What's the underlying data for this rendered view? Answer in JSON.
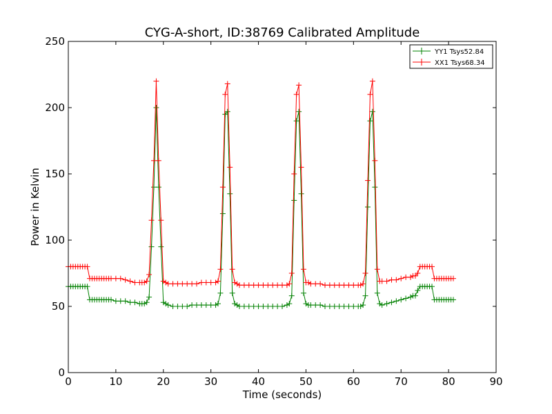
{
  "chart_data": {
    "type": "line",
    "title": "CYG-A-short, ID:38769 Calibrated Amplitude",
    "xlabel": "Time (seconds)",
    "ylabel": "Power in Kelvin",
    "xlim": [
      0,
      90
    ],
    "ylim": [
      0,
      250
    ],
    "xticks": [
      0,
      10,
      20,
      30,
      40,
      50,
      60,
      70,
      80,
      90
    ],
    "yticks": [
      0,
      50,
      100,
      150,
      200,
      250
    ],
    "grid": false,
    "legend_position": "top-right",
    "series": [
      {
        "name": "YY1 Tsys52.84",
        "color": "#008000",
        "x": [
          0,
          0.5,
          1,
          1.5,
          2,
          2.5,
          3,
          3.5,
          4,
          4.5,
          5,
          5.5,
          6,
          6.5,
          7,
          7.5,
          8,
          8.5,
          9,
          10,
          11,
          12,
          13,
          14,
          15,
          15.5,
          16,
          16.5,
          17,
          17.5,
          18,
          18.5,
          19,
          19.5,
          20,
          20.5,
          21,
          22,
          23,
          24,
          25,
          26,
          27,
          28,
          29,
          30,
          31,
          31.5,
          32,
          32.5,
          33,
          33.5,
          34,
          34.5,
          35,
          35.5,
          36,
          37,
          38,
          39,
          40,
          41,
          42,
          43,
          44,
          45,
          46,
          46.5,
          47,
          47.5,
          48,
          48.5,
          49,
          49.5,
          50,
          50.5,
          51,
          52,
          53,
          54,
          55,
          56,
          57,
          58,
          59,
          60,
          61,
          61.5,
          62,
          62.5,
          63,
          63.5,
          64,
          64.5,
          65,
          65.5,
          66,
          67,
          68,
          69,
          70,
          71,
          72,
          72.5,
          73,
          73.5,
          74,
          74.5,
          75,
          75.5,
          76,
          76.5,
          77,
          77.5,
          78,
          78.5,
          79,
          79.5,
          80,
          80.5,
          81
        ],
        "values": [
          65,
          65,
          65,
          65,
          65,
          65,
          65,
          65,
          65,
          55,
          55,
          55,
          55,
          55,
          55,
          55,
          55,
          55,
          55,
          54,
          54,
          54,
          53,
          53,
          52,
          52,
          52,
          53,
          57,
          95,
          140,
          200,
          140,
          95,
          53,
          52,
          51,
          50,
          50,
          50,
          50,
          51,
          51,
          51,
          51,
          51,
          51,
          52,
          60,
          120,
          195,
          197,
          135,
          60,
          52,
          51,
          50,
          50,
          50,
          50,
          50,
          50,
          50,
          50,
          50,
          50,
          51,
          52,
          58,
          130,
          190,
          197,
          135,
          60,
          52,
          51,
          51,
          51,
          51,
          50,
          50,
          50,
          50,
          50,
          50,
          50,
          50,
          50,
          51,
          58,
          125,
          190,
          197,
          140,
          60,
          52,
          51,
          52,
          53,
          54,
          55,
          56,
          57,
          58,
          58,
          62,
          65,
          65,
          65,
          65,
          65,
          65,
          55,
          55,
          55,
          55,
          55,
          55,
          55,
          55,
          55
        ]
      },
      {
        "name": "XX1 Tsys68.34",
        "color": "#ff0000",
        "x": [
          0,
          0.5,
          1,
          1.5,
          2,
          2.5,
          3,
          3.5,
          4,
          4.5,
          5,
          5.5,
          6,
          6.5,
          7,
          7.5,
          8,
          8.5,
          9,
          10,
          11,
          12,
          13,
          14,
          15,
          15.5,
          16,
          16.5,
          17,
          17.5,
          18,
          18.5,
          19,
          19.5,
          20,
          20.5,
          21,
          22,
          23,
          24,
          25,
          26,
          27,
          28,
          29,
          30,
          31,
          31.5,
          32,
          32.5,
          33,
          33.5,
          34,
          34.5,
          35,
          35.5,
          36,
          37,
          38,
          39,
          40,
          41,
          42,
          43,
          44,
          45,
          46,
          46.5,
          47,
          47.5,
          48,
          48.5,
          49,
          49.5,
          50,
          50.5,
          51,
          52,
          53,
          54,
          55,
          56,
          57,
          58,
          59,
          60,
          61,
          61.5,
          62,
          62.5,
          63,
          63.5,
          64,
          64.5,
          65,
          65.5,
          66,
          67,
          68,
          69,
          70,
          71,
          72,
          72.5,
          73,
          73.5,
          74,
          74.5,
          75,
          75.5,
          76,
          76.5,
          77,
          77.5,
          78,
          78.5,
          79,
          79.5,
          80,
          80.5,
          81
        ],
        "values": [
          80,
          80,
          80,
          80,
          80,
          80,
          80,
          80,
          80,
          71,
          71,
          71,
          71,
          71,
          71,
          71,
          71,
          71,
          71,
          71,
          71,
          70,
          69,
          68,
          68,
          68,
          68,
          69,
          74,
          115,
          160,
          220,
          160,
          115,
          69,
          68,
          67,
          67,
          67,
          67,
          67,
          67,
          67,
          68,
          68,
          68,
          68,
          69,
          78,
          140,
          210,
          218,
          155,
          78,
          68,
          67,
          66,
          66,
          66,
          66,
          66,
          66,
          66,
          66,
          66,
          66,
          66,
          67,
          75,
          150,
          210,
          217,
          155,
          78,
          68,
          68,
          67,
          67,
          67,
          66,
          66,
          66,
          66,
          66,
          66,
          66,
          66,
          66,
          67,
          75,
          145,
          210,
          220,
          160,
          78,
          69,
          69,
          69,
          70,
          70,
          71,
          72,
          72,
          73,
          73,
          75,
          80,
          80,
          80,
          80,
          80,
          80,
          71,
          71,
          71,
          71,
          71,
          71,
          71,
          71,
          71
        ]
      }
    ]
  }
}
